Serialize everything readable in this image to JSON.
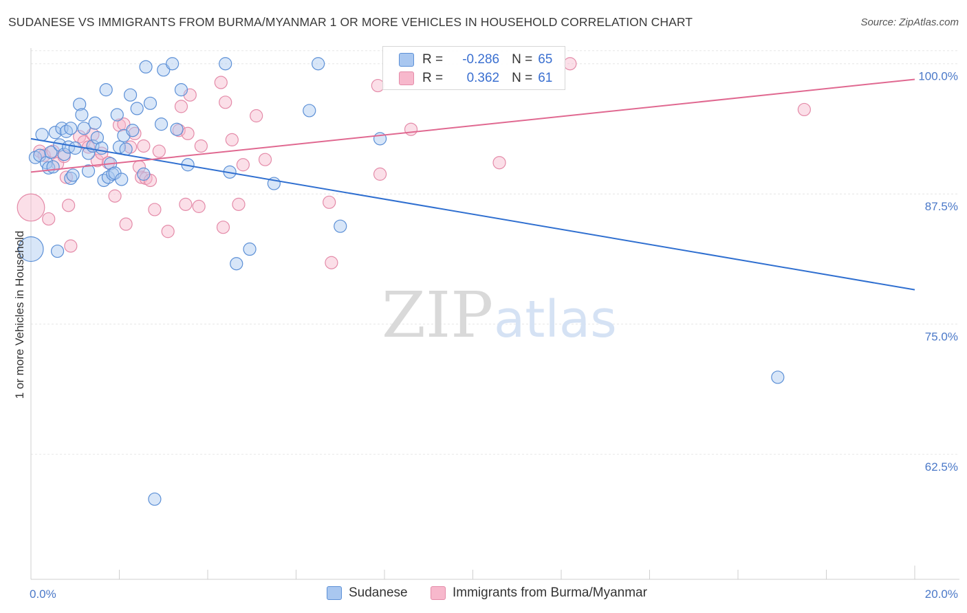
{
  "title": "SUDANESE VS IMMIGRANTS FROM BURMA/MYANMAR 1 OR MORE VEHICLES IN HOUSEHOLD CORRELATION CHART",
  "source": "Source: ZipAtlas.com",
  "watermark": {
    "zip": "ZIP",
    "atlas": "atlas"
  },
  "colors": {
    "blue_fill": "#a9c7f0",
    "blue_stroke": "#5b8fd6",
    "blue_line": "#2f6fd0",
    "pink_fill": "#f7b8cc",
    "pink_stroke": "#e48aa8",
    "pink_line": "#e06890",
    "tick_text": "#4a78c8",
    "grid": "#e6e6e6"
  },
  "legend_top": [
    {
      "r_label": "R =",
      "r_value": "-0.286",
      "n_label": "N =",
      "n_value": "65"
    },
    {
      "r_label": "R =",
      "r_value": "0.362",
      "n_label": "N =",
      "n_value": "61"
    }
  ],
  "chart_data": {
    "type": "scatter",
    "title": "SUDANESE VS IMMIGRANTS FROM BURMA/MYANMAR 1 OR MORE VEHICLES IN HOUSEHOLD CORRELATION CHART",
    "xlabel": "",
    "ylabel": "1 or more Vehicles in Household",
    "xlim": [
      0,
      20
    ],
    "ylim": [
      50.5,
      101.5
    ],
    "x_tick_labels": [
      "0.0%",
      "20.0%"
    ],
    "y_ticks": [
      62.5,
      75.0,
      87.5,
      100.0
    ],
    "y_tick_labels": [
      "62.5%",
      "75.0%",
      "87.5%",
      "100.0%"
    ],
    "grid": true,
    "legend_placement": "bottom",
    "series": [
      {
        "name": "Sudanese",
        "trend": {
          "x": [
            0,
            20
          ],
          "y": [
            92.8,
            78.3
          ]
        },
        "points": [
          [
            0.0,
            82.2,
            2.0
          ],
          [
            0.1,
            91.0,
            1
          ],
          [
            0.2,
            91.2,
            1
          ],
          [
            0.25,
            93.2,
            1
          ],
          [
            0.35,
            90.5,
            1
          ],
          [
            0.4,
            90.0,
            1
          ],
          [
            0.45,
            91.5,
            1
          ],
          [
            0.5,
            90.1,
            1
          ],
          [
            0.55,
            93.4,
            1
          ],
          [
            0.6,
            82.0,
            1
          ],
          [
            0.65,
            92.2,
            1
          ],
          [
            0.7,
            93.8,
            1
          ],
          [
            0.75,
            91.3,
            1
          ],
          [
            0.8,
            93.5,
            1
          ],
          [
            0.85,
            92.0,
            1
          ],
          [
            0.9,
            93.8,
            1
          ],
          [
            0.9,
            89.0,
            1
          ],
          [
            0.95,
            89.3,
            1
          ],
          [
            1.0,
            91.9,
            1
          ],
          [
            1.1,
            96.1,
            1
          ],
          [
            1.15,
            95.1,
            1
          ],
          [
            1.2,
            93.8,
            1
          ],
          [
            1.3,
            91.4,
            1
          ],
          [
            1.3,
            89.7,
            1
          ],
          [
            1.4,
            92.1,
            1
          ],
          [
            1.45,
            94.3,
            1
          ],
          [
            1.5,
            92.9,
            1
          ],
          [
            1.6,
            91.9,
            1
          ],
          [
            1.65,
            88.8,
            1
          ],
          [
            1.7,
            97.5,
            1
          ],
          [
            1.75,
            89.1,
            1
          ],
          [
            1.8,
            90.4,
            1
          ],
          [
            1.85,
            89.4,
            1
          ],
          [
            1.9,
            89.5,
            1
          ],
          [
            1.95,
            95.1,
            1
          ],
          [
            2.0,
            92.0,
            1
          ],
          [
            2.05,
            88.9,
            1
          ],
          [
            2.1,
            93.1,
            1
          ],
          [
            2.15,
            91.8,
            1
          ],
          [
            2.25,
            97.0,
            1
          ],
          [
            2.3,
            93.6,
            1
          ],
          [
            2.4,
            95.7,
            1
          ],
          [
            2.55,
            89.4,
            1
          ],
          [
            2.6,
            99.7,
            1
          ],
          [
            2.7,
            96.2,
            1
          ],
          [
            2.8,
            58.2,
            1
          ],
          [
            2.95,
            94.2,
            1
          ],
          [
            3.0,
            99.4,
            1
          ],
          [
            3.2,
            100.0,
            1
          ],
          [
            3.4,
            97.5,
            1
          ],
          [
            3.55,
            90.3,
            1
          ],
          [
            3.3,
            93.7,
            1
          ],
          [
            4.4,
            100.0,
            1
          ],
          [
            4.5,
            89.6,
            1
          ],
          [
            4.65,
            80.8,
            1
          ],
          [
            4.95,
            82.2,
            1
          ],
          [
            5.5,
            88.5,
            1
          ],
          [
            6.3,
            95.5,
            1
          ],
          [
            6.5,
            100.0,
            1
          ],
          [
            7.0,
            84.4,
            1
          ],
          [
            7.9,
            92.8,
            1
          ],
          [
            16.9,
            69.9,
            1
          ]
        ]
      },
      {
        "name": "Immigrants from Burma/Myanmar",
        "trend": {
          "x": [
            0,
            20
          ],
          "y": [
            89.6,
            98.5
          ]
        },
        "points": [
          [
            0.0,
            86.2,
            2.2
          ],
          [
            0.2,
            91.6,
            1
          ],
          [
            0.3,
            91.2,
            1
          ],
          [
            0.4,
            85.1,
            1
          ],
          [
            0.5,
            91.6,
            1
          ],
          [
            0.6,
            90.4,
            1
          ],
          [
            0.75,
            91.1,
            1
          ],
          [
            0.8,
            89.1,
            1
          ],
          [
            0.85,
            86.4,
            1
          ],
          [
            0.9,
            82.5,
            1
          ],
          [
            1.1,
            93.0,
            1
          ],
          [
            1.2,
            92.5,
            1
          ],
          [
            1.3,
            92.0,
            1
          ],
          [
            1.4,
            93.2,
            1
          ],
          [
            1.5,
            90.7,
            1
          ],
          [
            1.6,
            91.4,
            1
          ],
          [
            1.75,
            90.5,
            1
          ],
          [
            1.9,
            87.3,
            1
          ],
          [
            2.0,
            94.1,
            1
          ],
          [
            2.1,
            94.2,
            1
          ],
          [
            2.15,
            84.6,
            1
          ],
          [
            2.25,
            92.0,
            1
          ],
          [
            2.35,
            93.3,
            1
          ],
          [
            2.45,
            90.1,
            1
          ],
          [
            2.5,
            89.1,
            1
          ],
          [
            2.55,
            92.1,
            1
          ],
          [
            2.6,
            89.0,
            1
          ],
          [
            2.7,
            88.8,
            1
          ],
          [
            2.8,
            86.0,
            1
          ],
          [
            2.9,
            91.6,
            1
          ],
          [
            3.1,
            83.9,
            1
          ],
          [
            3.35,
            93.6,
            1
          ],
          [
            3.4,
            95.9,
            1
          ],
          [
            3.55,
            93.3,
            1
          ],
          [
            3.5,
            86.5,
            1
          ],
          [
            3.6,
            97.0,
            1
          ],
          [
            3.8,
            86.3,
            1
          ],
          [
            3.85,
            92.1,
            1
          ],
          [
            4.3,
            98.2,
            1
          ],
          [
            4.35,
            84.3,
            1
          ],
          [
            4.4,
            96.3,
            1
          ],
          [
            4.55,
            92.7,
            1
          ],
          [
            4.7,
            86.5,
            1
          ],
          [
            4.8,
            90.3,
            1
          ],
          [
            5.1,
            95.0,
            1
          ],
          [
            5.3,
            90.8,
            1
          ],
          [
            6.75,
            86.7,
            1
          ],
          [
            6.8,
            80.9,
            1
          ],
          [
            7.85,
            97.9,
            1
          ],
          [
            7.9,
            89.4,
            1
          ],
          [
            8.6,
            93.7,
            1
          ],
          [
            10.6,
            90.5,
            1
          ],
          [
            12.2,
            100.0,
            1
          ],
          [
            17.5,
            95.6,
            1
          ]
        ]
      }
    ]
  }
}
